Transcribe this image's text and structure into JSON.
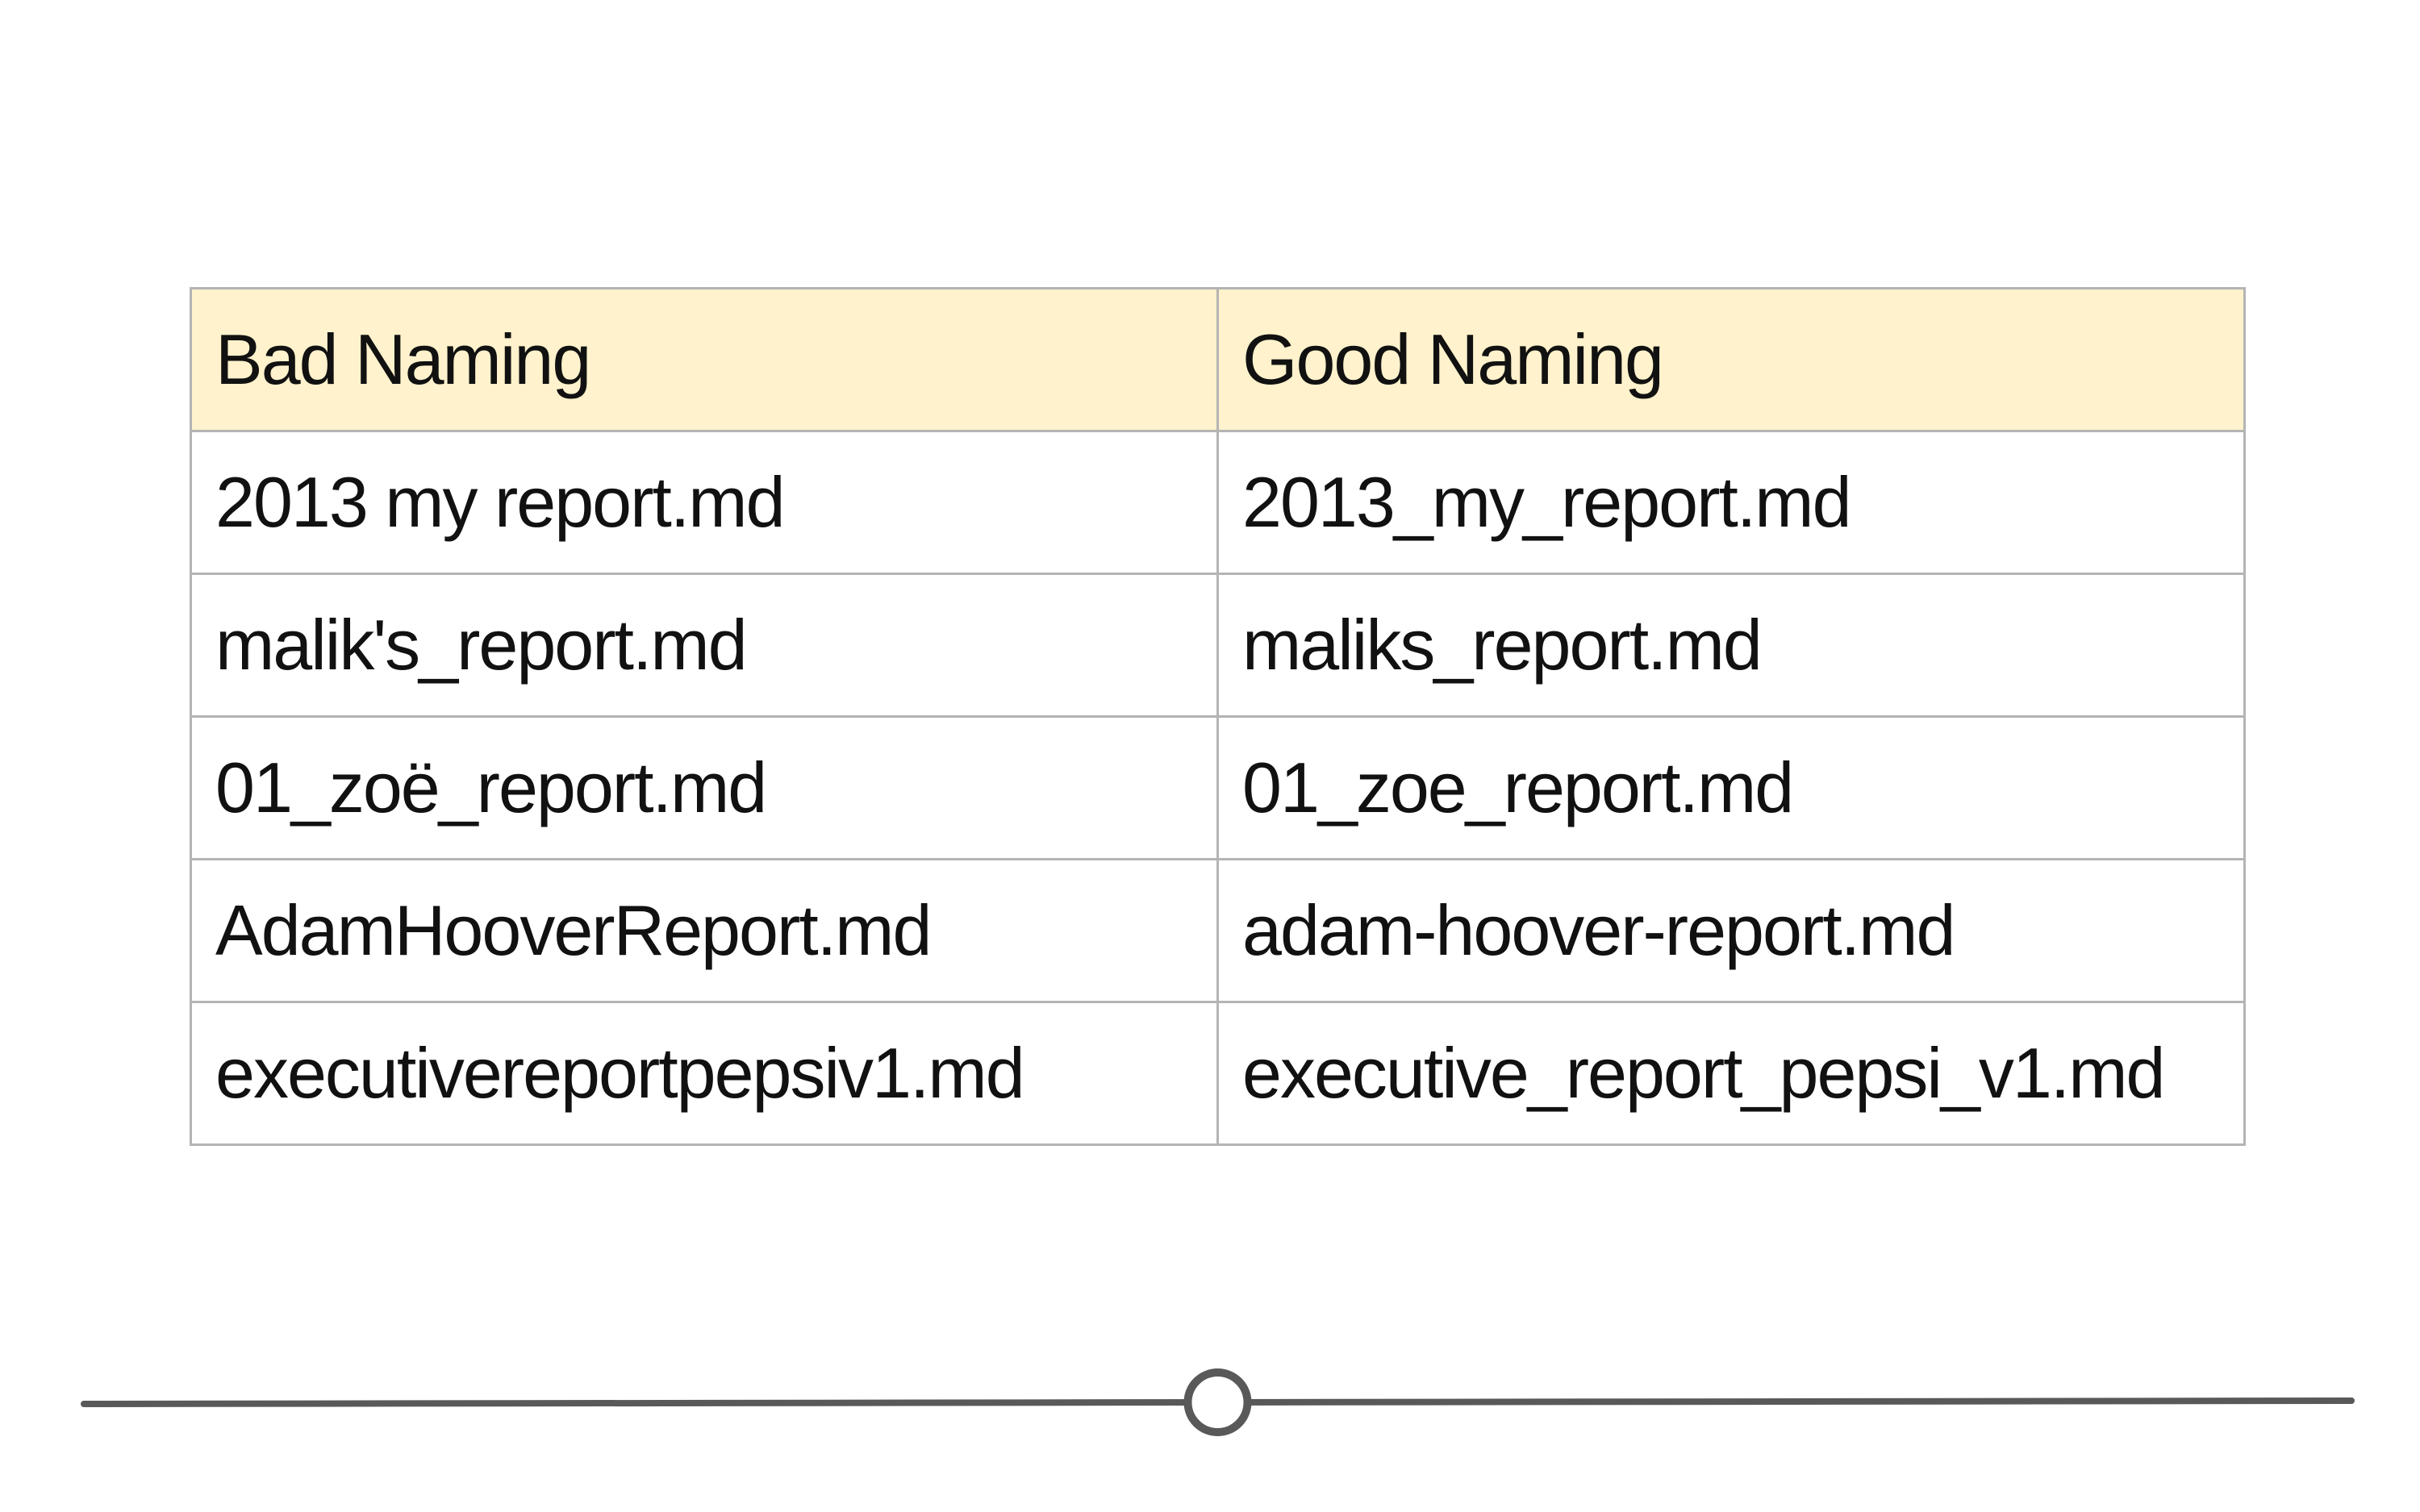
{
  "table": {
    "headers": [
      "Bad Naming",
      "Good Naming"
    ],
    "rows": [
      [
        "2013 my report.md",
        "2013_my_report.md"
      ],
      [
        "malik's_report.md",
        "maliks_report.md"
      ],
      [
        "01_zoë_report.md",
        "01_zoe_report.md"
      ],
      [
        "AdamHooverReport.md",
        "adam-hoover-report.md"
      ],
      [
        "executivereportpepsiv1.md",
        "executive_report_pepsi_v1.md"
      ]
    ],
    "header_background": "#fff2cc",
    "border_color": "#b4b4b4"
  },
  "progress": {
    "position_fraction": 0.5,
    "track_color": "#595959"
  }
}
